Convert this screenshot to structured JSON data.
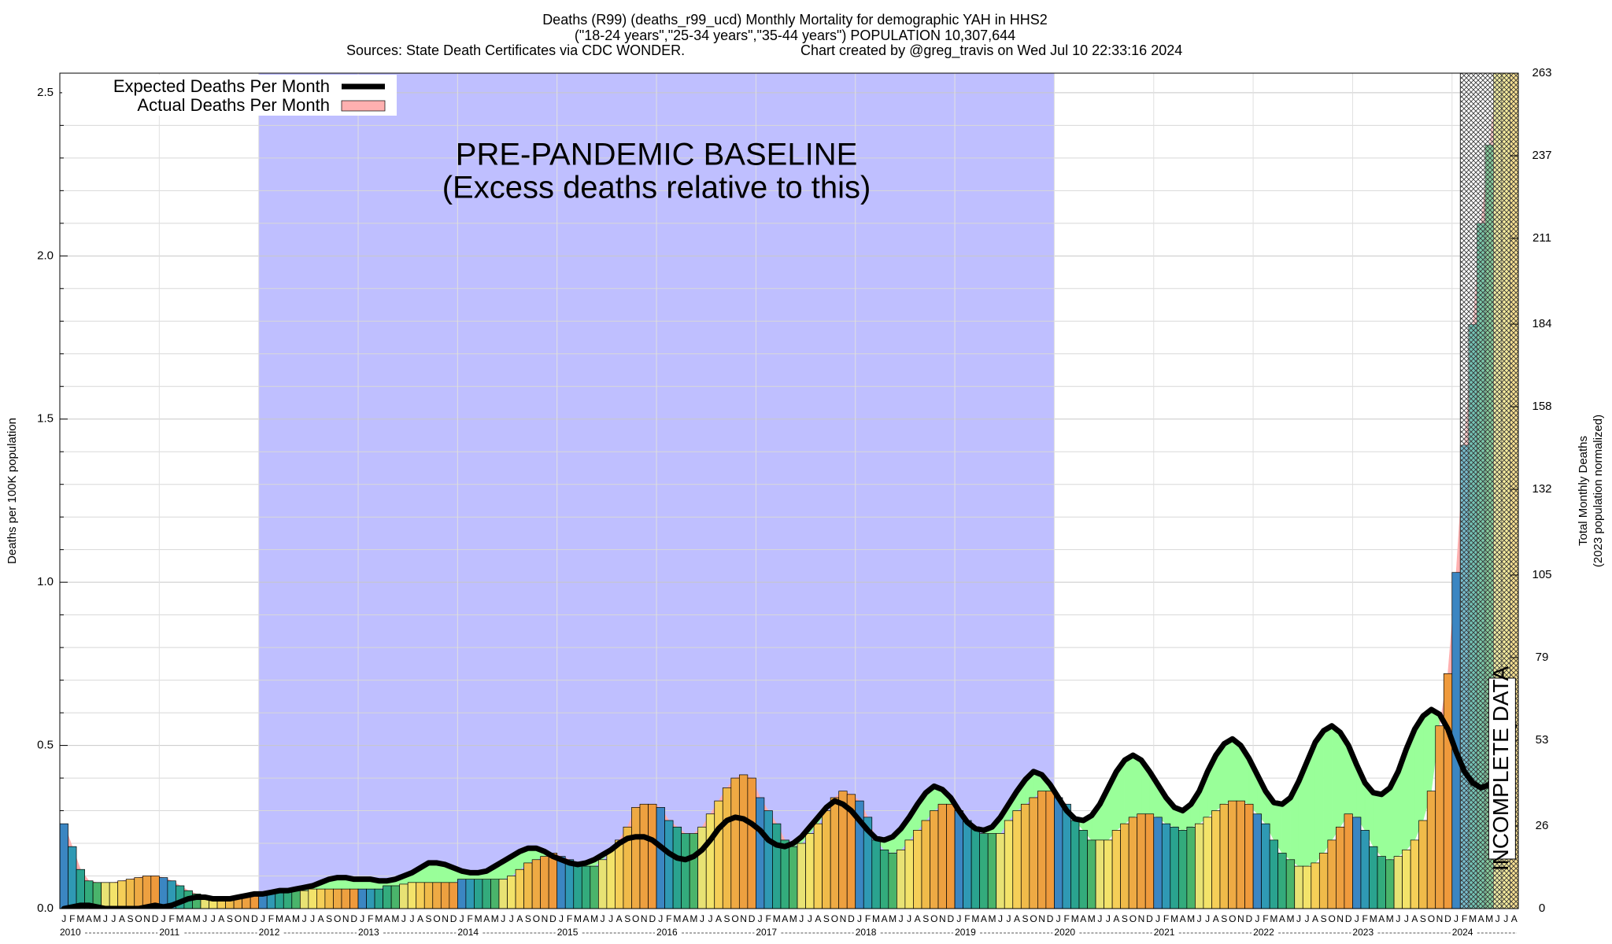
{
  "chart_data": {
    "type": "bar",
    "title": "Deaths (R99) (deaths_r99_ucd) Monthly Mortality for demographic YAH in HHS2",
    "subtitle": "(\"18-24 years\",\"25-34 years\",\"35-44 years\") POPULATION 10,307,644",
    "sources": "Sources: State Death Certificates via CDC WONDER.",
    "credit": "Chart created by @greg_travis on Wed Jul 10 22:33:16 2024",
    "ylabel": "Deaths per 100K population",
    "y2label": [
      "Total Monthly Deaths",
      "(2023 population normalized)"
    ],
    "annotations": {
      "baseline": [
        "PRE-PANDEMIC BASELINE",
        "(Excess deaths relative to this)"
      ],
      "incomplete": "INCOMPLETE DATA"
    },
    "baseline_region": [
      "2012-01",
      "2019-12"
    ],
    "incomplete_region": [
      "2024-02",
      "2024-08"
    ],
    "baseline_color": "#bfbfff",
    "excess_color": "#ffb0b0",
    "deficit_color": "#99ff99",
    "legend": "upper left",
    "grid": true,
    "year_labels": [
      "2010",
      "2011",
      "2012",
      "2013",
      "2014",
      "2015",
      "2016",
      "2017",
      "2018",
      "2019",
      "2020",
      "2021",
      "2022",
      "2023",
      "2024"
    ],
    "categories": [
      "J",
      "F",
      "M",
      "A",
      "M",
      "J",
      "J",
      "A",
      "S",
      "O",
      "N",
      "D",
      "J",
      "F",
      "M",
      "A",
      "M",
      "J",
      "J",
      "A",
      "S",
      "O",
      "N",
      "D",
      "J",
      "F",
      "M",
      "A",
      "M",
      "J",
      "J",
      "A",
      "S",
      "O",
      "N",
      "D",
      "J",
      "F",
      "M",
      "A",
      "M",
      "J",
      "J",
      "A",
      "S",
      "O",
      "N",
      "D",
      "J",
      "F",
      "M",
      "A",
      "M",
      "J",
      "J",
      "A",
      "S",
      "O",
      "N",
      "D",
      "J",
      "F",
      "M",
      "A",
      "M",
      "J",
      "J",
      "A",
      "S",
      "O",
      "N",
      "D",
      "J",
      "F",
      "M",
      "A",
      "M",
      "J",
      "J",
      "A",
      "S",
      "O",
      "N",
      "D",
      "J",
      "F",
      "M",
      "A",
      "M",
      "J",
      "J",
      "A",
      "S",
      "O",
      "N",
      "D",
      "J",
      "F",
      "M",
      "A",
      "M",
      "J",
      "J",
      "A",
      "S",
      "O",
      "N",
      "D",
      "J",
      "F",
      "M",
      "A",
      "M",
      "J",
      "J",
      "A",
      "S",
      "O",
      "N",
      "D",
      "J",
      "F",
      "M",
      "A",
      "M",
      "J",
      "J",
      "A",
      "S",
      "O",
      "N",
      "D",
      "J",
      "F",
      "M",
      "A",
      "M",
      "J",
      "J",
      "A",
      "S",
      "O",
      "N",
      "D",
      "J",
      "F",
      "M",
      "A",
      "M",
      "J",
      "J",
      "A",
      "S",
      "O",
      "N",
      "D",
      "J",
      "F",
      "M",
      "A",
      "M",
      "J",
      "J",
      "A",
      "S",
      "O",
      "N",
      "D",
      "J",
      "F",
      "M",
      "A",
      "M",
      "J",
      "J",
      "A"
    ],
    "bar_colors": [
      "#3b86c2",
      "#2f99b4",
      "#2aa38f",
      "#33ab7c",
      "#4ab46b",
      "#e8e274",
      "#f3e36a",
      "#f5cf58",
      "#f0bb4a",
      "#eeaa44",
      "#eda040",
      "#ef9a3c"
    ],
    "series": [
      {
        "name": "Expected Deaths Per Month",
        "color": "#000000",
        "values": [
          0.0,
          0.005,
          0.01,
          0.01,
          0.005,
          0.0,
          0.0,
          0.0,
          0.0,
          0.0,
          0.005,
          0.01,
          0.005,
          0.01,
          0.02,
          0.03,
          0.035,
          0.035,
          0.03,
          0.03,
          0.03,
          0.035,
          0.04,
          0.045,
          0.045,
          0.05,
          0.055,
          0.055,
          0.06,
          0.065,
          0.07,
          0.08,
          0.09,
          0.095,
          0.095,
          0.09,
          0.09,
          0.09,
          0.085,
          0.085,
          0.09,
          0.1,
          0.11,
          0.125,
          0.14,
          0.14,
          0.135,
          0.125,
          0.115,
          0.11,
          0.11,
          0.115,
          0.13,
          0.145,
          0.16,
          0.175,
          0.185,
          0.185,
          0.175,
          0.16,
          0.15,
          0.14,
          0.135,
          0.14,
          0.15,
          0.165,
          0.18,
          0.2,
          0.215,
          0.22,
          0.22,
          0.21,
          0.19,
          0.17,
          0.155,
          0.15,
          0.16,
          0.18,
          0.21,
          0.245,
          0.27,
          0.28,
          0.275,
          0.26,
          0.24,
          0.21,
          0.195,
          0.19,
          0.2,
          0.22,
          0.25,
          0.28,
          0.31,
          0.33,
          0.32,
          0.3,
          0.27,
          0.24,
          0.215,
          0.21,
          0.22,
          0.245,
          0.28,
          0.32,
          0.355,
          0.375,
          0.365,
          0.34,
          0.3,
          0.265,
          0.245,
          0.24,
          0.25,
          0.28,
          0.32,
          0.36,
          0.395,
          0.42,
          0.41,
          0.38,
          0.34,
          0.3,
          0.275,
          0.27,
          0.285,
          0.32,
          0.37,
          0.42,
          0.455,
          0.47,
          0.455,
          0.42,
          0.38,
          0.34,
          0.31,
          0.3,
          0.32,
          0.36,
          0.42,
          0.47,
          0.505,
          0.52,
          0.5,
          0.46,
          0.41,
          0.36,
          0.325,
          0.32,
          0.34,
          0.39,
          0.45,
          0.51,
          0.545,
          0.56,
          0.54,
          0.5,
          0.44,
          0.385,
          0.355,
          0.35,
          0.37,
          0.42,
          0.49,
          0.55,
          0.59,
          0.61,
          0.595,
          0.55,
          0.48,
          0.42,
          0.385,
          0.37,
          0.38,
          0.43,
          0.5,
          0.56
        ]
      },
      {
        "name": "Actual Deaths Per Month",
        "color": "#ffb0b0",
        "values": [
          0.26,
          0.19,
          0.12,
          0.085,
          0.08,
          0.08,
          0.08,
          0.085,
          0.09,
          0.095,
          0.1,
          0.1,
          0.095,
          0.085,
          0.07,
          0.055,
          0.045,
          0.035,
          0.03,
          0.03,
          0.03,
          0.035,
          0.04,
          0.05,
          0.05,
          0.05,
          0.055,
          0.055,
          0.055,
          0.055,
          0.06,
          0.06,
          0.06,
          0.06,
          0.06,
          0.06,
          0.06,
          0.06,
          0.06,
          0.07,
          0.07,
          0.075,
          0.08,
          0.08,
          0.08,
          0.08,
          0.08,
          0.08,
          0.09,
          0.09,
          0.09,
          0.09,
          0.09,
          0.09,
          0.1,
          0.12,
          0.14,
          0.15,
          0.16,
          0.17,
          0.16,
          0.15,
          0.14,
          0.13,
          0.13,
          0.15,
          0.18,
          0.21,
          0.25,
          0.31,
          0.32,
          0.32,
          0.31,
          0.27,
          0.25,
          0.23,
          0.23,
          0.25,
          0.29,
          0.33,
          0.37,
          0.4,
          0.41,
          0.4,
          0.34,
          0.3,
          0.26,
          0.21,
          0.19,
          0.2,
          0.23,
          0.26,
          0.3,
          0.34,
          0.36,
          0.35,
          0.33,
          0.28,
          0.21,
          0.18,
          0.17,
          0.18,
          0.21,
          0.24,
          0.27,
          0.3,
          0.32,
          0.32,
          0.3,
          0.27,
          0.25,
          0.23,
          0.23,
          0.23,
          0.27,
          0.3,
          0.32,
          0.34,
          0.36,
          0.36,
          0.34,
          0.32,
          0.27,
          0.24,
          0.21,
          0.21,
          0.21,
          0.24,
          0.26,
          0.28,
          0.29,
          0.29,
          0.28,
          0.26,
          0.25,
          0.24,
          0.25,
          0.26,
          0.28,
          0.3,
          0.32,
          0.33,
          0.33,
          0.32,
          0.29,
          0.26,
          0.21,
          0.17,
          0.15,
          0.13,
          0.13,
          0.14,
          0.17,
          0.21,
          0.25,
          0.29,
          0.28,
          0.24,
          0.19,
          0.16,
          0.15,
          0.16,
          0.18,
          0.21,
          0.27,
          0.36,
          0.56,
          0.72,
          1.03,
          1.42,
          1.79,
          2.1,
          2.34,
          2.56,
          2.56,
          2.56
        ]
      }
    ],
    "ylim": [
      0,
      2.56
    ],
    "yticks": [
      {
        "value": 0,
        "label": "0.0"
      },
      0.5,
      {
        "value": 1,
        "label": "1.0"
      },
      1.5,
      {
        "value": 2,
        "label": "2.0"
      },
      2.5
    ],
    "yminor": [
      0.1,
      0.2,
      0.3,
      0.4,
      0.6,
      0.7,
      0.8,
      0.9,
      1.1,
      1.2,
      1.3,
      1.4,
      1.6,
      1.7,
      1.8,
      1.9,
      2.1,
      2.2,
      2.3,
      2.4
    ],
    "y2lim": [
      0,
      263
    ],
    "y2ticks": [
      0,
      26,
      53,
      79,
      105,
      132,
      158,
      184,
      211,
      237,
      263
    ]
  }
}
